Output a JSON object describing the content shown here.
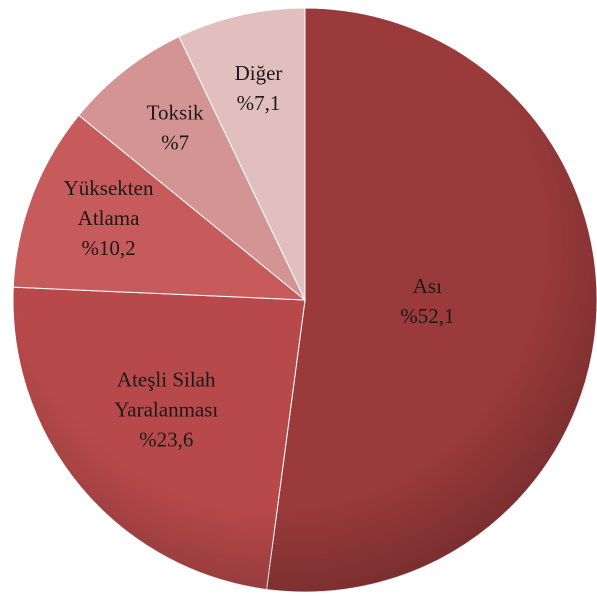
{
  "chart_data": {
    "type": "pie",
    "categories": [
      "Ası",
      "Ateşli Silah Yaralanması",
      "Yüksekten Atlama",
      "Toksik",
      "Diğer"
    ],
    "values": [
      52.1,
      23.6,
      10.2,
      7,
      7.1
    ],
    "value_labels": [
      "%52,1",
      "%23,6",
      "%10,2",
      "%7",
      "%7,1"
    ],
    "colors": [
      "#9a3a3b",
      "#b8494a",
      "#c75a5a",
      "#d59494",
      "#e2bfbf"
    ]
  }
}
